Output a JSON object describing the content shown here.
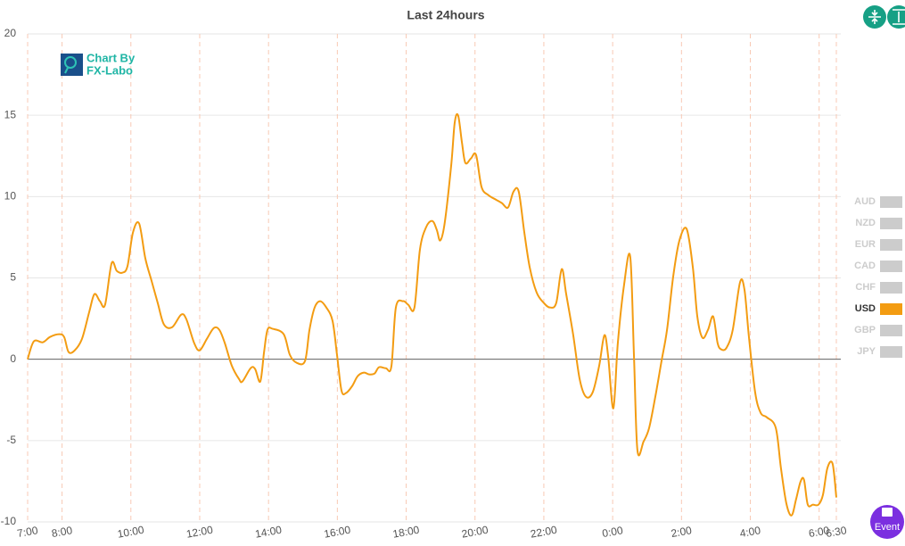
{
  "chart_data": {
    "type": "line",
    "title": "Last 24hours",
    "x": [
      0,
      0.18,
      0.44,
      0.65,
      0.91,
      1.06,
      1.19,
      1.37,
      1.58,
      1.79,
      1.94,
      2.1,
      2.25,
      2.44,
      2.59,
      2.75,
      2.9,
      3.06,
      3.24,
      3.42,
      3.6,
      3.78,
      3.96,
      4.2,
      4.46,
      4.61,
      4.84,
      5.0,
      5.21,
      5.41,
      5.57,
      5.73,
      5.93,
      6.14,
      6.24,
      6.48,
      6.61,
      6.76,
      6.87,
      6.97,
      7.12,
      7.44,
      7.62,
      7.82,
      8.06,
      8.19,
      8.34,
      8.5,
      8.68,
      8.86,
      8.99,
      9.12,
      9.25,
      9.43,
      9.59,
      9.77,
      9.92,
      10.08,
      10.21,
      10.41,
      10.57,
      10.7,
      10.91,
      11.06,
      11.24,
      11.4,
      11.58,
      11.76,
      11.89,
      11.99,
      12.12,
      12.31,
      12.41,
      12.51,
      12.62,
      12.72,
      12.88,
      13.03,
      13.19,
      13.39,
      13.6,
      13.78,
      13.96,
      14.12,
      14.27,
      14.43,
      14.59,
      14.79,
      15.0,
      15.18,
      15.36,
      15.52,
      15.65,
      15.85,
      16.04,
      16.22,
      16.42,
      16.61,
      16.76,
      16.87,
      17.02,
      17.15,
      17.33,
      17.51,
      17.62,
      17.72,
      17.9,
      18.06,
      18.24,
      18.42,
      18.58,
      18.76,
      18.94,
      19.15,
      19.33,
      19.46,
      19.61,
      19.77,
      19.92,
      20.05,
      20.16,
      20.31,
      20.49,
      20.7,
      20.83,
      20.96,
      21.14,
      21.3,
      21.48,
      21.74,
      21.89,
      22.05,
      22.2,
      22.33,
      22.46,
      22.56,
      22.67,
      22.82,
      22.98,
      23.11,
      23.24,
      23.39,
      23.5
    ],
    "series": [
      {
        "name": "USD",
        "color": "#f39c12",
        "values": [
          0,
          1.1,
          1.04,
          1.37,
          1.54,
          1.37,
          0.44,
          0.55,
          1.26,
          2.91,
          4.0,
          3.57,
          3.35,
          5.9,
          5.43,
          5.32,
          5.71,
          7.79,
          8.34,
          6.2,
          4.83,
          3.46,
          2.14,
          1.97,
          2.74,
          2.47,
          0.99,
          0.55,
          1.26,
          1.92,
          1.81,
          0.99,
          -0.38,
          -1.21,
          -1.37,
          -0.55,
          -0.6,
          -1.37,
          0.44,
          1.81,
          1.87,
          1.54,
          0.27,
          -0.22,
          -0.11,
          1.81,
          3.18,
          3.57,
          3.18,
          2.36,
          0.27,
          -1.92,
          -2.08,
          -1.65,
          -1.04,
          -0.82,
          -0.93,
          -0.88,
          -0.49,
          -0.55,
          -0.44,
          3.18,
          3.57,
          3.35,
          3.18,
          6.75,
          8.12,
          8.5,
          7.95,
          7.3,
          8.39,
          11.96,
          14.54,
          14.98,
          13.33,
          12.07,
          12.34,
          12.56,
          10.59,
          10.09,
          9.82,
          9.6,
          9.33,
          10.31,
          10.31,
          7.84,
          5.65,
          4.11,
          3.46,
          3.18,
          3.46,
          5.54,
          4.0,
          1.54,
          -1.21,
          -2.3,
          -2.03,
          -0.38,
          1.48,
          0.16,
          -3.02,
          0.99,
          4.55,
          6.31,
          0.16,
          -5.6,
          -5.05,
          -4.22,
          -2.3,
          -0.11,
          1.81,
          5.1,
          7.3,
          8.01,
          5.65,
          2.63,
          1.32,
          1.81,
          2.63,
          0.99,
          0.6,
          0.71,
          1.81,
          4.72,
          4.28,
          1.37,
          -2.03,
          -3.29,
          -3.57,
          -4.22,
          -6.69,
          -8.89,
          -9.6,
          -8.61,
          -7.52,
          -7.41,
          -8.94,
          -8.94,
          -8.94,
          -8.34,
          -6.69,
          -6.42,
          -8.5
        ]
      }
    ],
    "legend": [
      {
        "name": "AUD",
        "color": "#cccccc"
      },
      {
        "name": "NZD",
        "color": "#cccccc"
      },
      {
        "name": "EUR",
        "color": "#cccccc"
      },
      {
        "name": "CAD",
        "color": "#cccccc"
      },
      {
        "name": "CHF",
        "color": "#cccccc"
      },
      {
        "name": "USD",
        "color": "#f39c12",
        "active": true
      },
      {
        "name": "GBP",
        "color": "#cccccc"
      },
      {
        "name": "JPY",
        "color": "#cccccc"
      }
    ],
    "xlim": [
      0,
      23.5
    ],
    "xticks": [
      {
        "value": 0,
        "label": "7:00"
      },
      {
        "value": 1,
        "label": "8:00"
      },
      {
        "value": 3,
        "label": "10:00"
      },
      {
        "value": 5,
        "label": "12:00"
      },
      {
        "value": 7,
        "label": "14:00"
      },
      {
        "value": 9,
        "label": "16:00"
      },
      {
        "value": 11,
        "label": "18:00"
      },
      {
        "value": 13,
        "label": "20:00"
      },
      {
        "value": 15,
        "label": "22:00"
      },
      {
        "value": 17,
        "label": "0:00"
      },
      {
        "value": 19,
        "label": "2:00"
      },
      {
        "value": 21,
        "label": "4:00"
      },
      {
        "value": 23,
        "label": "6:00"
      },
      {
        "value": 23.5,
        "label": "6:30"
      }
    ],
    "ylim": [
      -10,
      20
    ],
    "yticks": [
      -10,
      -5,
      0,
      5,
      10,
      15,
      20
    ],
    "grid": true
  },
  "logo": {
    "line1": "Chart By",
    "line2": "FX-Labo"
  },
  "event_button": "Event"
}
